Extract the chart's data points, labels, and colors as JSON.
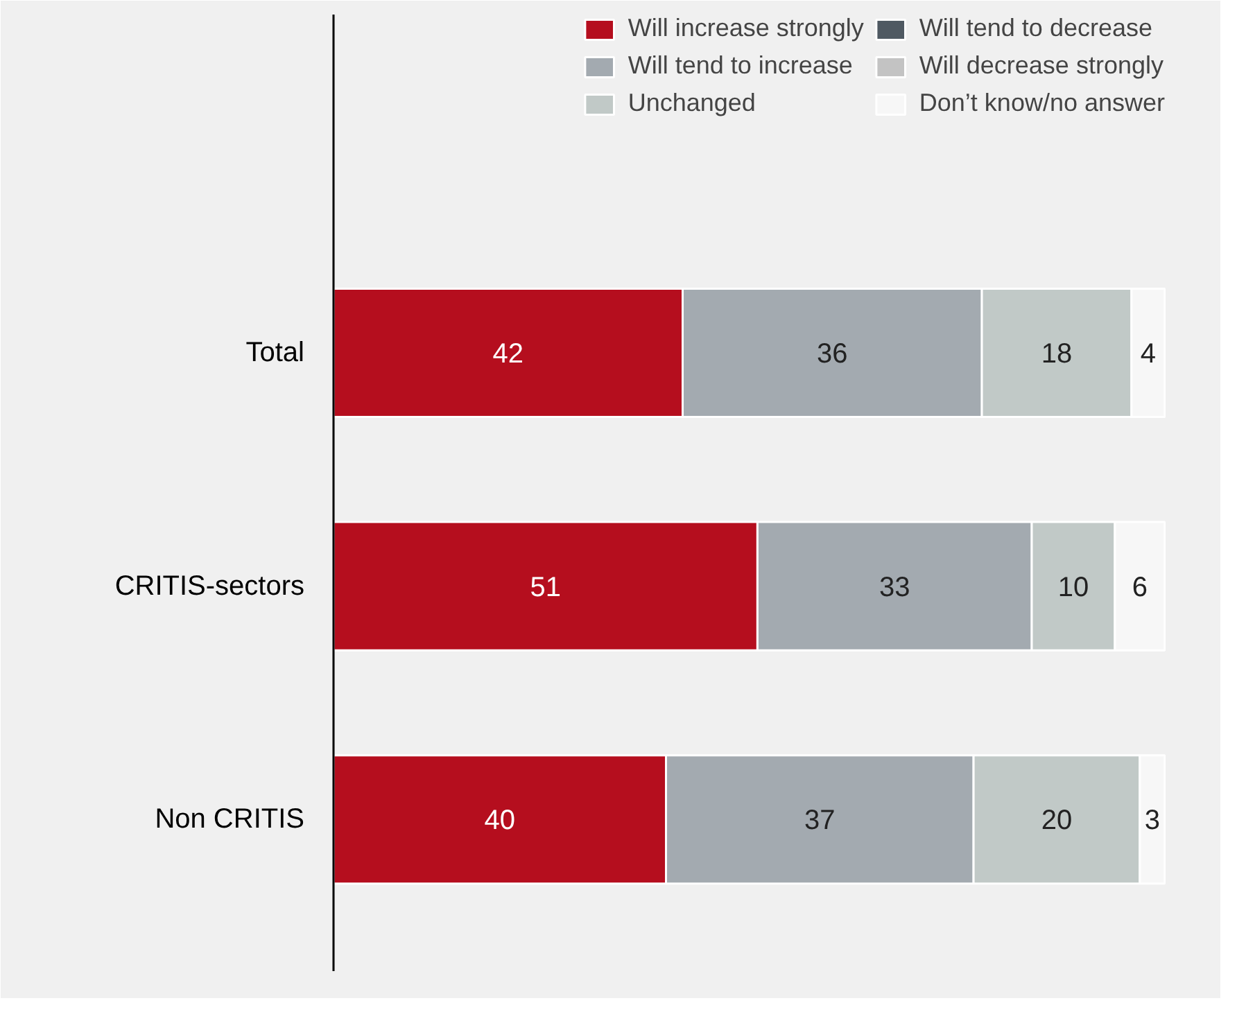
{
  "chart_data": {
    "type": "bar",
    "orientation": "horizontal",
    "stacked": true,
    "data_labels": true,
    "legend": "top right",
    "grid": false,
    "categories": [
      "Total",
      "CRITIS-sectors",
      "Non CRITIS"
    ],
    "series": [
      {
        "name": "Will increase strongly",
        "color": "#b50e1e",
        "values": [
          42,
          51,
          40
        ]
      },
      {
        "name": "Will tend to increase",
        "color": "#a3aab0",
        "values": [
          36,
          33,
          37
        ]
      },
      {
        "name": "Unchanged",
        "color": "#c1c9c7",
        "values": [
          18,
          10,
          20
        ]
      },
      {
        "name": "Will tend to decrease",
        "color": "#4f5962",
        "values": [
          null,
          null,
          null
        ]
      },
      {
        "name": "Will decrease strongly",
        "color": "#c3c3c3",
        "values": [
          null,
          null,
          null
        ]
      },
      {
        "name": "Don’t know/no answer",
        "color": "#f7f7f7",
        "values": [
          4,
          6,
          3
        ]
      }
    ]
  }
}
